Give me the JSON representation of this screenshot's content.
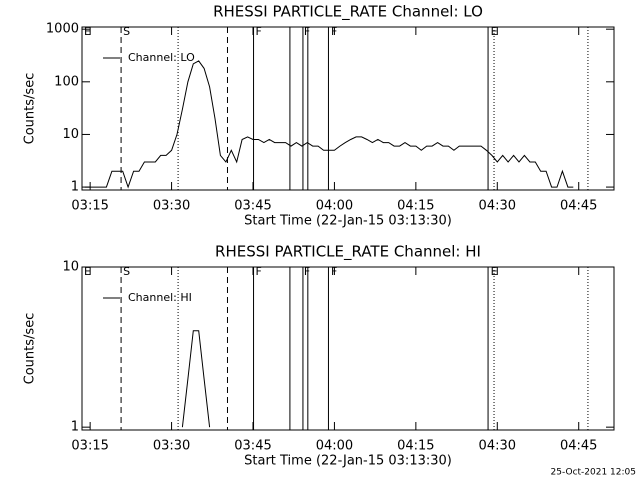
{
  "chart_data": [
    {
      "type": "line",
      "title": "RHESSI PARTICLE_RATE Channel: LO",
      "x_label": "Start Time (22-Jan-15 03:13:30)",
      "y_label": "Counts/sec",
      "log_y": true,
      "xlim": [
        "03:13:30",
        "04:51:30"
      ],
      "ylim": [
        0.88,
        1100
      ],
      "yticks": [
        1,
        10,
        100,
        1000
      ],
      "xticks": [
        "03:15",
        "03:30",
        "03:45",
        "04:00",
        "04:15",
        "04:30",
        "04:45"
      ],
      "legend": "upper left",
      "flags": [
        {
          "label": "E",
          "time": "03:13:30"
        },
        {
          "label": "S",
          "time": "03:20:42"
        },
        {
          "label": "F",
          "time": "03:45:06"
        },
        {
          "label": "F",
          "time": "03:54:00"
        },
        {
          "label": "F",
          "time": "03:59:00"
        },
        {
          "label": "E",
          "time": "04:28:24"
        }
      ],
      "lines": [
        {
          "time": "03:20:42",
          "style": "dashed"
        },
        {
          "time": "03:40:18",
          "style": "dashed"
        },
        {
          "time": "03:31:12",
          "style": "dotted"
        },
        {
          "time": "04:29:24",
          "style": "dotted"
        },
        {
          "time": "04:46:42",
          "style": "dotted"
        },
        {
          "time": "03:45:06",
          "style": "solid"
        },
        {
          "time": "03:51:48",
          "style": "solid"
        },
        {
          "time": "03:54:12",
          "style": "solid"
        },
        {
          "time": "03:55:06",
          "style": "solid"
        },
        {
          "time": "03:58:54",
          "style": "solid"
        },
        {
          "time": "04:28:18",
          "style": "solid"
        }
      ],
      "series": [
        {
          "name": "Channel: LO",
          "color": "#000000",
          "x": [
            "03:14",
            "03:15",
            "03:16",
            "03:17",
            "03:18",
            "03:19",
            "03:20",
            "03:21",
            "03:22",
            "03:23",
            "03:24",
            "03:25",
            "03:26",
            "03:27",
            "03:28",
            "03:29",
            "03:30",
            "03:31",
            "03:32",
            "03:33",
            "03:34",
            "03:35",
            "03:36",
            "03:37",
            "03:38",
            "03:39",
            "03:40",
            "03:41",
            "03:42",
            "03:43",
            "03:44",
            "03:45",
            "03:46",
            "03:47",
            "03:48",
            "03:49",
            "03:50",
            "03:51",
            "03:52",
            "03:53",
            "03:54",
            "03:55",
            "03:56",
            "03:57",
            "03:58",
            "03:59",
            "04:00",
            "04:01",
            "04:02",
            "04:03",
            "04:04",
            "04:05",
            "04:06",
            "04:07",
            "04:08",
            "04:09",
            "04:10",
            "04:11",
            "04:12",
            "04:13",
            "04:14",
            "04:15",
            "04:16",
            "04:17",
            "04:18",
            "04:19",
            "04:20",
            "04:21",
            "04:22",
            "04:23",
            "04:24",
            "04:25",
            "04:26",
            "04:27",
            "04:28",
            "04:29",
            "04:30",
            "04:31",
            "04:32",
            "04:33",
            "04:34",
            "04:35",
            "04:36",
            "04:37",
            "04:38",
            "04:39",
            "04:40",
            "04:41",
            "04:42",
            "04:43",
            "04:44"
          ],
          "values": [
            1,
            1,
            1,
            1,
            1,
            2,
            2,
            2,
            1,
            2,
            2,
            3,
            3,
            3,
            4,
            4,
            5,
            10,
            30,
            100,
            220,
            250,
            180,
            80,
            20,
            4,
            3,
            5,
            3,
            8,
            9,
            8,
            8,
            7,
            8,
            7,
            7,
            7,
            6,
            7,
            6,
            7,
            6,
            6,
            5,
            5,
            5,
            6,
            7,
            8,
            9,
            9,
            8,
            7,
            8,
            7,
            7,
            6,
            6,
            7,
            6,
            6,
            5,
            6,
            6,
            7,
            6,
            6,
            5,
            6,
            6,
            6,
            6,
            6,
            5,
            4,
            3,
            4,
            3,
            4,
            3,
            4,
            3,
            3,
            2,
            2,
            1,
            1,
            2,
            1,
            1
          ]
        }
      ]
    },
    {
      "type": "line",
      "title": "RHESSI PARTICLE_RATE Channel: HI",
      "x_label": "Start Time (22-Jan-15 03:13:30)",
      "y_label": "Counts/sec",
      "log_y": true,
      "xlim": [
        "03:13:30",
        "04:51:30"
      ],
      "ylim": [
        0.96,
        10
      ],
      "yticks": [
        1,
        10
      ],
      "xticks": [
        "03:15",
        "03:30",
        "03:45",
        "04:00",
        "04:15",
        "04:30",
        "04:45"
      ],
      "legend": "upper left",
      "flags": [
        {
          "label": "E",
          "time": "03:13:30"
        },
        {
          "label": "S",
          "time": "03:20:42"
        },
        {
          "label": "F",
          "time": "03:45:06"
        },
        {
          "label": "F",
          "time": "03:54:00"
        },
        {
          "label": "F",
          "time": "03:59:00"
        },
        {
          "label": "E",
          "time": "04:28:24"
        }
      ],
      "lines": [
        {
          "time": "03:20:42",
          "style": "dashed"
        },
        {
          "time": "03:40:18",
          "style": "dashed"
        },
        {
          "time": "03:31:12",
          "style": "dotted"
        },
        {
          "time": "04:29:24",
          "style": "dotted"
        },
        {
          "time": "04:46:42",
          "style": "dotted"
        },
        {
          "time": "03:45:06",
          "style": "solid"
        },
        {
          "time": "03:51:48",
          "style": "solid"
        },
        {
          "time": "03:54:12",
          "style": "solid"
        },
        {
          "time": "03:55:06",
          "style": "solid"
        },
        {
          "time": "03:58:54",
          "style": "solid"
        },
        {
          "time": "04:28:18",
          "style": "solid"
        }
      ],
      "series": [
        {
          "name": "Channel: HI",
          "color": "#000000",
          "x": [
            "03:32",
            "03:33",
            "03:34",
            "03:35",
            "03:36",
            "03:37"
          ],
          "values": [
            1,
            2,
            4,
            4,
            2,
            1
          ]
        }
      ]
    }
  ],
  "timestamp": "25-Oct-2021 12:05"
}
